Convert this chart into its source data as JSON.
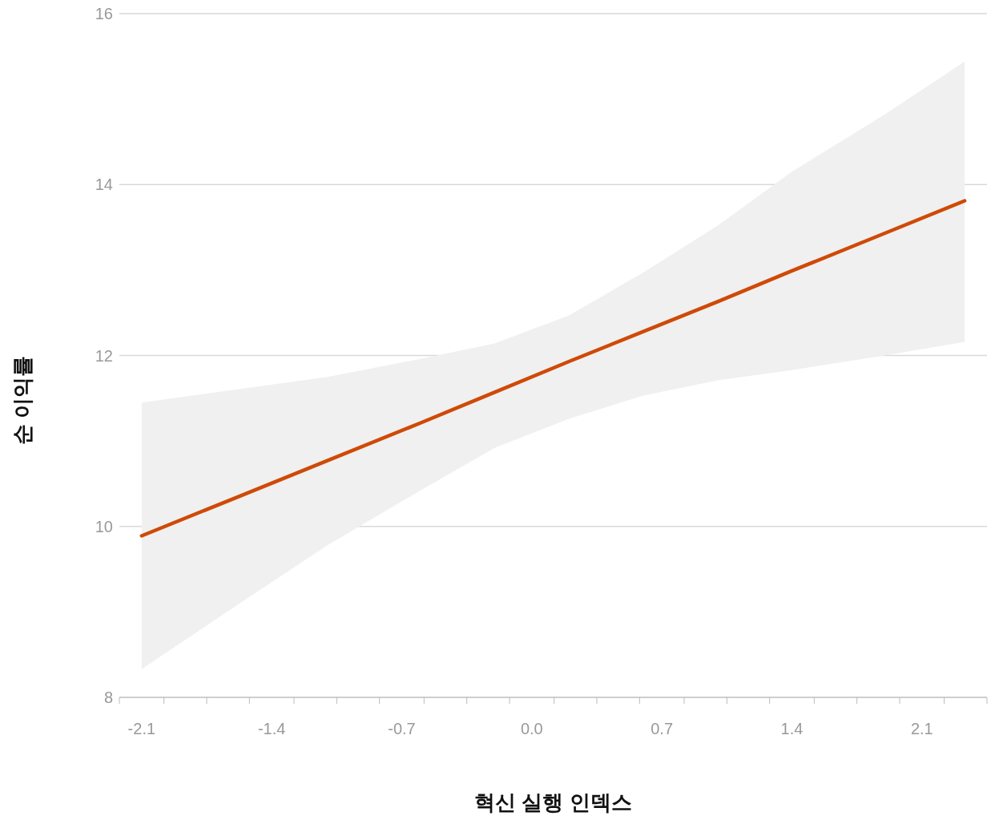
{
  "chart_data": {
    "type": "line",
    "xlabel": "혁신 실행 인덱스",
    "ylabel": "순 이익률",
    "x": [
      -2.1,
      -1.6,
      -1.1,
      -0.6,
      -0.2,
      0.2,
      0.6,
      1.0,
      1.4,
      1.9,
      2.33
    ],
    "series": [
      {
        "color": "#cf4a06",
        "values": [
          9.89,
          10.33,
          10.77,
          11.21,
          11.57,
          11.93,
          12.28,
          12.63,
          12.99,
          13.43,
          13.81
        ],
        "lower": [
          8.33,
          9.06,
          9.78,
          10.42,
          10.92,
          11.26,
          11.53,
          11.71,
          11.83,
          12.0,
          12.16
        ],
        "upper": [
          11.45,
          11.6,
          11.75,
          11.96,
          12.14,
          12.47,
          12.97,
          13.52,
          14.15,
          14.82,
          15.44
        ]
      }
    ],
    "xlim": [
      -2.22,
      2.45
    ],
    "xticks": [
      {
        "value": -2.22,
        "label": null
      },
      -2.1,
      {
        "value": -1.98,
        "label": null
      },
      {
        "value": -1.75,
        "label": null
      },
      {
        "value": -1.52,
        "label": null
      },
      -1.4,
      {
        "value": -1.28,
        "label": null
      },
      {
        "value": -1.05,
        "label": null
      },
      {
        "value": -0.82,
        "label": null
      },
      -0.7,
      {
        "value": -0.58,
        "label": null
      },
      {
        "value": -0.35,
        "label": null
      },
      {
        "value": -0.12,
        "label": null
      },
      {
        "value": 0,
        "label": "0.0"
      },
      {
        "value": 0.12,
        "label": null
      },
      {
        "value": 0.35,
        "label": null
      },
      {
        "value": 0.58,
        "label": null
      },
      0.7,
      {
        "value": 0.82,
        "label": null
      },
      {
        "value": 1.05,
        "label": null
      },
      {
        "value": 1.28,
        "label": null
      },
      1.4,
      {
        "value": 1.52,
        "label": null
      },
      {
        "value": 1.75,
        "label": null
      },
      {
        "value": 1.98,
        "label": null
      },
      2.1,
      {
        "value": 2.22,
        "label": null
      },
      {
        "value": 2.45,
        "label": null
      }
    ],
    "ylim": [
      8,
      16
    ],
    "yticks": [
      8,
      10,
      12,
      14,
      16
    ],
    "grid": "y",
    "marker": "none",
    "line_style": "solid"
  }
}
